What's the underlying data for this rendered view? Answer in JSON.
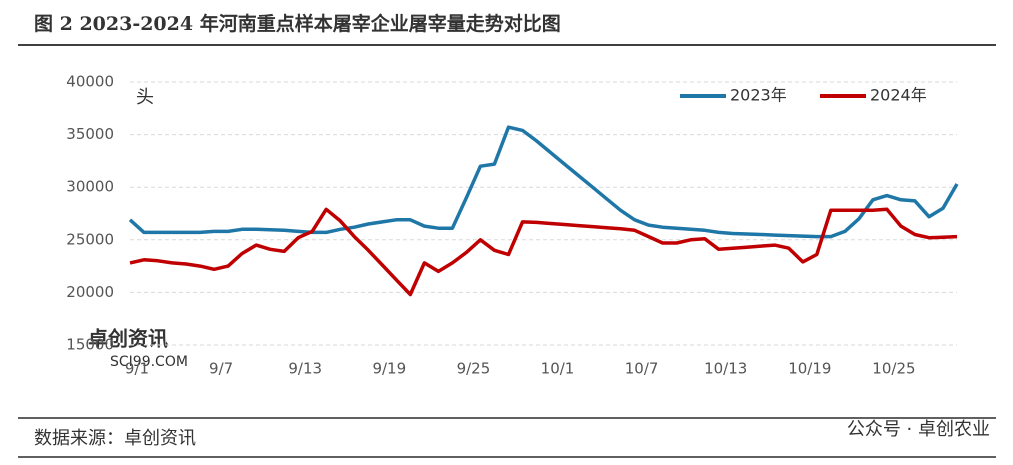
{
  "chart_data": {
    "type": "line",
    "title": "图 2 2023-2024 年河南重点样本屠宰企业屠宰量走势对比图",
    "y_unit": "头",
    "source": "数据来源：卓创资讯",
    "watermark": "卓创资讯",
    "watermark_url": "SCI99.COM",
    "footer_right": "公众号 · 卓创农业",
    "categories": [
      "9/1",
      null,
      null,
      null,
      null,
      null,
      "9/7",
      null,
      null,
      null,
      null,
      null,
      "9/13",
      null,
      null,
      null,
      null,
      null,
      "9/19",
      null,
      null,
      null,
      null,
      null,
      "9/25",
      null,
      null,
      null,
      null,
      null,
      "10/1",
      null,
      null,
      null,
      null,
      null,
      "10/7",
      null,
      null,
      null,
      null,
      null,
      "10/13",
      null,
      null,
      null,
      null,
      null,
      "10/19",
      null,
      null,
      null,
      null,
      null,
      "10/25",
      null,
      null,
      null,
      null,
      null
    ],
    "series": [
      {
        "name": "2023年",
        "color": "#1f77a8",
        "values": [
          26900,
          25700,
          25700,
          25700,
          25700,
          25700,
          25800,
          25800,
          26000,
          26000,
          25950,
          25900,
          25800,
          25700,
          25700,
          26000,
          26200,
          26500,
          26700,
          26900,
          26900,
          26300,
          26100,
          26100,
          29000,
          32000,
          32200,
          35700,
          35400,
          34400,
          33300,
          32200,
          31100,
          30000,
          28900,
          27800,
          26900,
          26400,
          26200,
          26100,
          26000,
          25900,
          25700,
          25600,
          25550,
          25500,
          25450,
          25400,
          25350,
          25300,
          25300,
          25800,
          27000,
          28800,
          29200,
          28800,
          28700,
          27200,
          28000,
          30300
        ]
      },
      {
        "name": "2024年",
        "color": "#c00000",
        "values": [
          22800,
          23100,
          23000,
          22800,
          22700,
          22500,
          22200,
          22500,
          23700,
          24500,
          24100,
          23900,
          25200,
          25800,
          27900,
          26800,
          25300,
          24000,
          22600,
          21200,
          19800,
          22800,
          22000,
          22800,
          23800,
          25000,
          24000,
          23600,
          26700,
          26650,
          26550,
          26450,
          26350,
          26250,
          26150,
          26050,
          25900,
          25300,
          24700,
          24700,
          25000,
          25100,
          24100,
          24200,
          24300,
          24400,
          24500,
          24200,
          22900,
          23600,
          27800,
          27800,
          27800,
          27800,
          27900,
          26300,
          25500,
          25200,
          25250,
          25300
        ]
      }
    ],
    "ylim": [
      15000,
      40000
    ],
    "yticks": [
      15000,
      20000,
      25000,
      30000,
      35000,
      40000
    ],
    "grid": true,
    "legend": "top-right"
  }
}
